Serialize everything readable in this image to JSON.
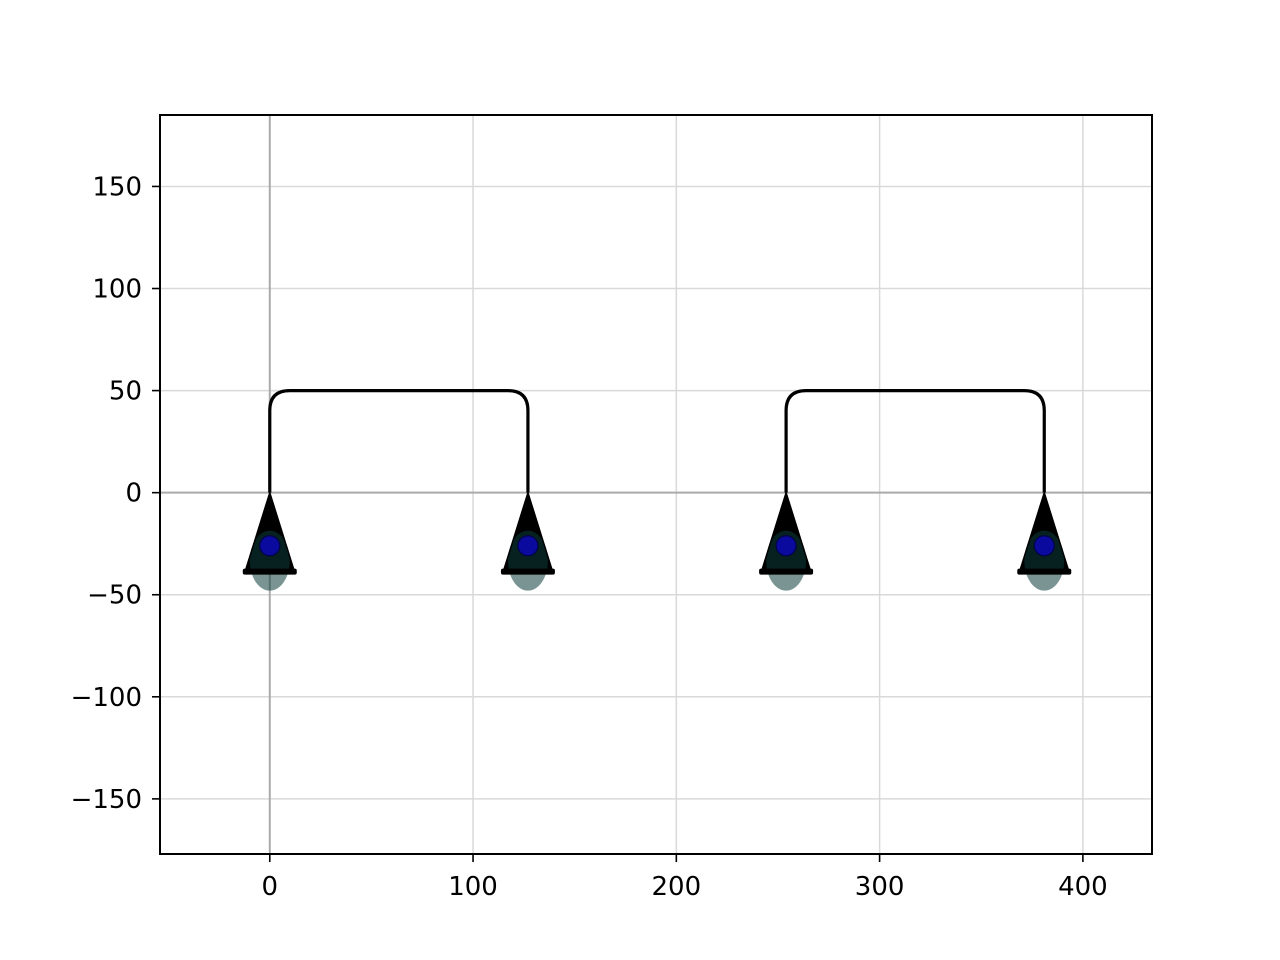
{
  "chart_data": {
    "type": "diagram",
    "title": "",
    "xlabel": "",
    "ylabel": "",
    "xlim": [
      -54,
      434
    ],
    "ylim": [
      -177,
      185
    ],
    "grid": true,
    "xticks": [
      {
        "value": 0,
        "label": "0"
      },
      {
        "value": 100,
        "label": "100"
      },
      {
        "value": 200,
        "label": "200"
      },
      {
        "value": 300,
        "label": "300"
      },
      {
        "value": 400,
        "label": "400"
      }
    ],
    "yticks": [
      {
        "value": 150,
        "label": "150"
      },
      {
        "value": 100,
        "label": "100"
      },
      {
        "value": 50,
        "label": "50"
      },
      {
        "value": 0,
        "label": "0"
      },
      {
        "value": -50,
        "label": "−50"
      },
      {
        "value": -100,
        "label": "−100"
      },
      {
        "value": -150,
        "label": "−150"
      }
    ],
    "supports": [
      {
        "x": 0,
        "y": 0,
        "marker_y": -26
      },
      {
        "x": 127,
        "y": 0,
        "marker_y": -26
      },
      {
        "x": 254,
        "y": 0,
        "marker_y": -26
      },
      {
        "x": 381,
        "y": 0,
        "marker_y": -26
      }
    ],
    "frames": [
      {
        "x_start": 0,
        "x_end": 127,
        "height": 50
      },
      {
        "x_start": 254,
        "x_end": 381,
        "height": 50
      }
    ],
    "colors": {
      "frame": "#000000",
      "support": "#000000",
      "support_shading": "#0b3d3a",
      "marker": "#0a0a9e",
      "grid": "#d9d9d9",
      "axis_line": "#aaaaaa"
    }
  }
}
